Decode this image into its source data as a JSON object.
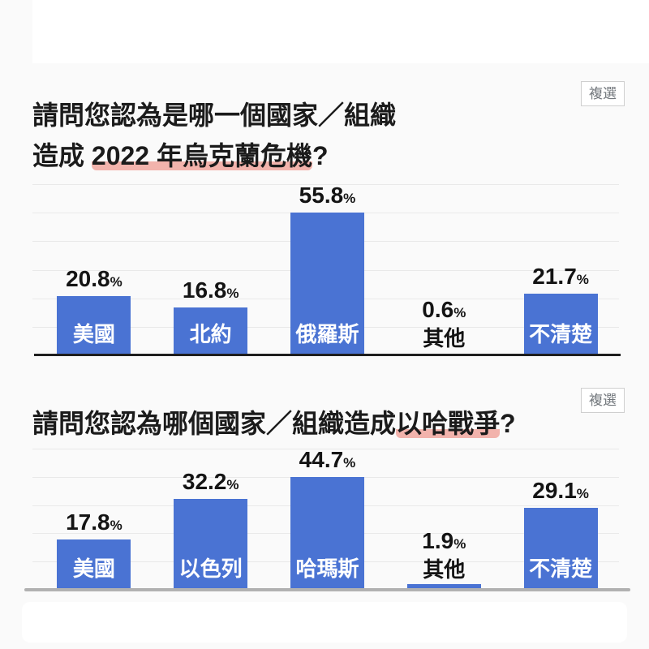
{
  "percent_sign": "%",
  "colors": {
    "page_bg": "#fafafa",
    "bar_blue": "#4a73d3",
    "highlight_pink": "#f2b3ac",
    "gridline": "#e9e9e9",
    "axis_dark": "#1e1e1e",
    "axis_gray": "#b1b1b1"
  },
  "questions": [
    {
      "title_line1": "請問您認為是哪一個國家／組織",
      "title_line2_prefix": "造成 ",
      "title_line2_highlight": "2022 年烏克蘭危機",
      "title_line2_suffix": "?",
      "badge": "複選"
    },
    {
      "title_prefix": "請問您認為哪個國家／組織造成",
      "title_highlight": "以哈戰爭",
      "title_suffix": "?",
      "badge": "複選"
    }
  ],
  "chart_data": [
    {
      "type": "bar",
      "title": "請問您認為是哪一個國家／組織造成 2022 年烏克蘭危機?",
      "categories": [
        "美國",
        "北約",
        "俄羅斯",
        "其他",
        "不清楚"
      ],
      "values": [
        20.8,
        16.8,
        55.8,
        0.6,
        21.7
      ],
      "value_labels": [
        "20.8",
        "16.8",
        "55.8",
        "0.6",
        "21.7"
      ],
      "unit": "%",
      "ylim": [
        0,
        60
      ],
      "gridline_step": 10,
      "grid": true,
      "legend": false,
      "bar_color": "#4a73d3",
      "multi_select_note": "複選"
    },
    {
      "type": "bar",
      "title": "請問您認為哪個國家／組織造成以哈戰爭?",
      "categories": [
        "美國",
        "以色列",
        "哈瑪斯",
        "其他",
        "不清楚"
      ],
      "values": [
        17.8,
        32.2,
        44.7,
        1.9,
        29.1
      ],
      "value_labels": [
        "17.8",
        "32.2",
        "44.7",
        "1.9",
        "29.1"
      ],
      "unit": "%",
      "ylim": [
        0,
        50
      ],
      "gridline_step": 10,
      "grid": true,
      "legend": false,
      "bar_color": "#4a73d3",
      "multi_select_note": "複選"
    }
  ]
}
